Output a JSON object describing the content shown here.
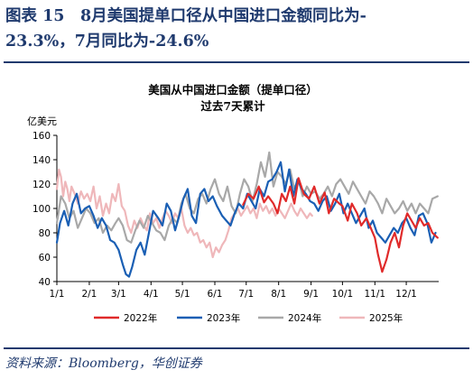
{
  "figure": {
    "title_line1": "图表 15　8月美国提单口径从中国进口金额同比为-",
    "title_line2": "23.3%，7月同比为-24.6%",
    "source": "资料来源：Bloomberg，华创证券"
  },
  "colors": {
    "title_blue": "#1f3a6e",
    "s2022": "#e02a2a",
    "s2023": "#1a5fb4",
    "s2024": "#a8a8a8",
    "s2025": "#efb7ba"
  },
  "chart_data": {
    "type": "line",
    "title": "美国从中国进口金额（提单口径）",
    "subtitle": "过去7天累计",
    "ylabel": "亿美元",
    "ylim": [
      40,
      160
    ],
    "yticks": [
      40,
      60,
      80,
      100,
      120,
      140,
      160
    ],
    "x_domain": [
      "01-01",
      "12-31"
    ],
    "xtick_dates": [
      "01-01",
      "02-01",
      "03-01",
      "04-01",
      "05-01",
      "06-01",
      "07-01",
      "08-01",
      "09-01",
      "10-01",
      "11-01",
      "12-01"
    ],
    "xtick_labels": [
      "1/1",
      "2/1",
      "3/1",
      "4/1",
      "5/1",
      "6/1",
      "7/1",
      "8/1",
      "9/1",
      "10/1",
      "11/1",
      "12/1"
    ],
    "legend_position": "bottom",
    "grid": false,
    "series": [
      {
        "name": "2022年",
        "x": [
          "06-28",
          "07-03",
          "07-08",
          "07-13",
          "07-18",
          "07-22",
          "07-27",
          "07-31",
          "08-04",
          "08-08",
          "08-12",
          "08-16",
          "08-20",
          "08-25",
          "08-30",
          "09-04",
          "09-09",
          "09-14",
          "09-18",
          "09-23",
          "09-28",
          "10-01",
          "10-06",
          "10-10",
          "10-15",
          "10-19",
          "10-24",
          "10-28",
          "11-01",
          "11-04",
          "11-08",
          "11-12",
          "11-16",
          "11-20",
          "11-24",
          "11-28",
          "12-02",
          "12-06",
          "12-10",
          "12-14",
          "12-18",
          "12-22",
          "12-26",
          "12-31"
        ],
        "y": [
          103,
          112,
          108,
          118,
          105,
          110,
          104,
          96,
          112,
          106,
          118,
          104,
          125,
          112,
          108,
          118,
          104,
          113,
          96,
          108,
          104,
          102,
          90,
          104,
          96,
          86,
          92,
          84,
          76,
          62,
          48,
          58,
          72,
          80,
          68,
          86,
          96,
          90,
          84,
          92,
          86,
          88,
          80,
          76
        ]
      },
      {
        "name": "2023年",
        "x": [
          "01-01",
          "01-04",
          "01-08",
          "01-12",
          "01-16",
          "01-20",
          "01-24",
          "01-28",
          "02-01",
          "02-05",
          "02-09",
          "02-13",
          "02-17",
          "02-21",
          "02-25",
          "03-01",
          "03-05",
          "03-08",
          "03-11",
          "03-14",
          "03-18",
          "03-22",
          "03-26",
          "03-30",
          "04-03",
          "04-08",
          "04-12",
          "04-16",
          "04-20",
          "04-24",
          "04-28",
          "05-02",
          "05-06",
          "05-10",
          "05-14",
          "05-18",
          "05-22",
          "05-26",
          "05-30",
          "06-03",
          "06-08",
          "06-12",
          "06-16",
          "06-20",
          "06-24",
          "06-28",
          "07-02",
          "07-06",
          "07-10",
          "07-14",
          "07-18",
          "07-22",
          "07-26",
          "07-30",
          "08-03",
          "08-07",
          "08-11",
          "08-15",
          "08-19",
          "08-23",
          "08-27",
          "08-31",
          "09-04",
          "09-08",
          "09-12",
          "09-16",
          "09-20",
          "09-24",
          "09-28",
          "10-02",
          "10-06",
          "10-10",
          "10-14",
          "10-18",
          "10-22",
          "10-26",
          "10-30",
          "11-03",
          "11-07",
          "11-11",
          "11-15",
          "11-19",
          "11-23",
          "11-27",
          "12-01",
          "12-05",
          "12-09",
          "12-13",
          "12-17",
          "12-21",
          "12-25",
          "12-29"
        ],
        "y": [
          72,
          88,
          98,
          86,
          104,
          112,
          96,
          100,
          102,
          94,
          84,
          92,
          86,
          74,
          72,
          66,
          54,
          46,
          44,
          52,
          66,
          72,
          62,
          80,
          98,
          92,
          86,
          104,
          98,
          82,
          94,
          108,
          116,
          94,
          88,
          112,
          116,
          106,
          110,
          102,
          94,
          90,
          86,
          96,
          104,
          100,
          112,
          106,
          100,
          116,
          110,
          122,
          124,
          130,
          138,
          114,
          132,
          110,
          124,
          116,
          112,
          106,
          104,
          98,
          106,
          110,
          98,
          104,
          112,
          96,
          104,
          96,
          88,
          94,
          100,
          84,
          90,
          80,
          76,
          72,
          78,
          84,
          80,
          88,
          92,
          84,
          78,
          94,
          96,
          88,
          72,
          80
        ]
      },
      {
        "name": "2024年",
        "x": [
          "01-01",
          "01-05",
          "01-09",
          "01-13",
          "01-17",
          "01-21",
          "01-25",
          "01-29",
          "02-02",
          "02-06",
          "02-10",
          "02-14",
          "02-18",
          "02-22",
          "02-26",
          "03-01",
          "03-05",
          "03-09",
          "03-13",
          "03-17",
          "03-21",
          "03-25",
          "03-29",
          "04-02",
          "04-06",
          "04-10",
          "04-14",
          "04-18",
          "04-22",
          "04-26",
          "04-30",
          "05-04",
          "05-08",
          "05-12",
          "05-16",
          "05-20",
          "05-24",
          "05-28",
          "06-01",
          "06-05",
          "06-09",
          "06-13",
          "06-17",
          "06-21",
          "06-25",
          "06-29",
          "07-03",
          "07-07",
          "07-11",
          "07-15",
          "07-19",
          "07-23",
          "07-27",
          "07-31",
          "08-04",
          "08-08",
          "08-12",
          "08-16",
          "08-20",
          "08-24",
          "08-28",
          "09-01",
          "09-05",
          "09-09",
          "09-13",
          "09-17",
          "09-21",
          "09-25",
          "09-29",
          "10-03",
          "10-07",
          "10-11",
          "10-15",
          "10-19",
          "10-23",
          "10-27",
          "10-31",
          "11-04",
          "11-08",
          "11-12",
          "11-16",
          "11-20",
          "11-24",
          "11-28",
          "12-02",
          "12-06",
          "12-10",
          "12-14",
          "12-18",
          "12-22",
          "12-26",
          "12-31"
        ],
        "y": [
          88,
          110,
          104,
          92,
          98,
          84,
          92,
          100,
          96,
          88,
          92,
          80,
          86,
          82,
          88,
          92,
          86,
          74,
          72,
          82,
          90,
          84,
          94,
          88,
          82,
          80,
          74,
          86,
          92,
          88,
          104,
          112,
          100,
          96,
          108,
          112,
          104,
          116,
          124,
          112,
          106,
          118,
          102,
          96,
          112,
          124,
          118,
          106,
          120,
          138,
          126,
          146,
          118,
          130,
          126,
          120,
          132,
          116,
          124,
          110,
          118,
          112,
          114,
          108,
          112,
          118,
          110,
          120,
          124,
          118,
          112,
          122,
          116,
          110,
          104,
          114,
          110,
          104,
          96,
          108,
          102,
          96,
          100,
          106,
          98,
          104,
          96,
          104,
          100,
          96,
          108,
          110
        ]
      },
      {
        "name": "2025年",
        "x": [
          "01-01",
          "01-03",
          "01-05",
          "01-07",
          "01-09",
          "01-11",
          "01-13",
          "01-15",
          "01-18",
          "01-21",
          "01-24",
          "01-27",
          "01-30",
          "02-02",
          "02-05",
          "02-08",
          "02-11",
          "02-14",
          "02-17",
          "02-20",
          "02-23",
          "02-26",
          "03-01",
          "03-04",
          "03-07",
          "03-10",
          "03-13",
          "03-16",
          "03-19",
          "03-22",
          "03-25",
          "03-28",
          "03-31",
          "04-03",
          "04-06",
          "04-09",
          "04-12",
          "04-15",
          "04-18",
          "04-21",
          "04-24",
          "04-27",
          "04-30",
          "05-03",
          "05-06",
          "05-09",
          "05-12",
          "05-15",
          "05-18",
          "05-21",
          "05-24",
          "05-27",
          "05-30",
          "06-02",
          "06-05",
          "06-08",
          "06-11",
          "06-14",
          "06-17",
          "06-20",
          "06-23",
          "06-26",
          "06-29",
          "07-02",
          "07-05",
          "07-08",
          "07-11",
          "07-14",
          "07-17",
          "07-20",
          "07-23",
          "07-26",
          "07-29",
          "08-01",
          "08-04",
          "08-07",
          "08-10",
          "08-13",
          "08-16",
          "08-19",
          "08-22",
          "08-25",
          "08-28",
          "08-31",
          "09-02"
        ],
        "y": [
          116,
          132,
          126,
          110,
          122,
          116,
          106,
          118,
          112,
          104,
          114,
          108,
          112,
          106,
          118,
          100,
          110,
          94,
          104,
          96,
          112,
          106,
          120,
          102,
          98,
          86,
          80,
          90,
          84,
          92,
          86,
          82,
          96,
          88,
          92,
          84,
          92,
          98,
          94,
          88,
          96,
          92,
          100,
          86,
          80,
          84,
          78,
          80,
          72,
          74,
          68,
          72,
          60,
          68,
          64,
          70,
          74,
          82,
          92,
          96,
          100,
          94,
          98,
          102,
          96,
          100,
          92,
          104,
          98,
          102,
          96,
          100,
          94,
          100,
          96,
          92,
          98,
          104,
          98,
          94,
          100,
          96,
          92,
          96,
          94
        ]
      }
    ]
  }
}
